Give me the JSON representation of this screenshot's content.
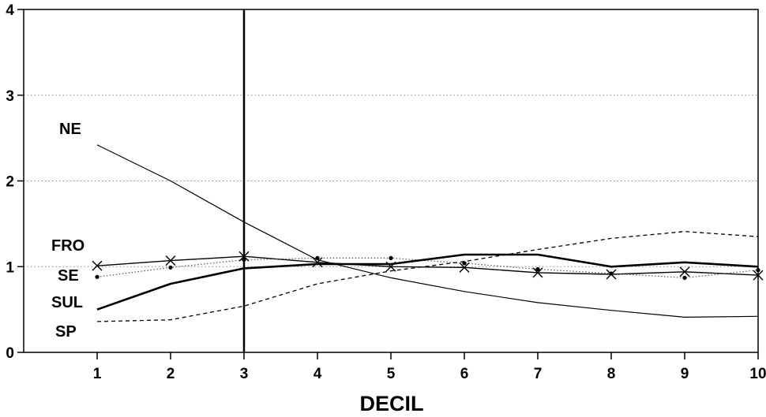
{
  "chart_data": {
    "type": "line",
    "title": "",
    "xlabel": "DECIL",
    "ylabel": "",
    "x": [
      1,
      2,
      3,
      4,
      5,
      6,
      7,
      8,
      9,
      10
    ],
    "xlim": [
      0,
      10
    ],
    "ylim": [
      0,
      4
    ],
    "y_ticks": [
      "0",
      "1",
      "2",
      "3",
      "4"
    ],
    "x_ticks": [
      "1",
      "2",
      "3",
      "4",
      "5",
      "6",
      "7",
      "8",
      "9",
      "10"
    ],
    "grid": "horizontal-dotted",
    "vertical_marker_at": 3,
    "series": [
      {
        "name": "NE",
        "style": "thin-solid",
        "values": [
          2.42,
          2.0,
          1.52,
          1.08,
          0.87,
          0.71,
          0.58,
          0.49,
          0.41,
          0.42
        ]
      },
      {
        "name": "FRO",
        "style": "solid-x-markers",
        "values": [
          1.01,
          1.07,
          1.12,
          1.05,
          1.0,
          0.99,
          0.93,
          0.91,
          0.94,
          0.9
        ]
      },
      {
        "name": "SE",
        "style": "dotted-dots",
        "values": [
          0.88,
          0.99,
          1.08,
          1.1,
          1.1,
          1.04,
          0.97,
          0.92,
          0.87,
          0.96
        ]
      },
      {
        "name": "SUL",
        "style": "thick-solid",
        "values": [
          0.5,
          0.8,
          0.98,
          1.03,
          1.03,
          1.14,
          1.14,
          1.0,
          1.05,
          1.0
        ]
      },
      {
        "name": "SP",
        "style": "dashed",
        "values": [
          0.36,
          0.38,
          0.54,
          0.8,
          0.95,
          1.06,
          1.2,
          1.33,
          1.41,
          1.35
        ]
      }
    ]
  }
}
